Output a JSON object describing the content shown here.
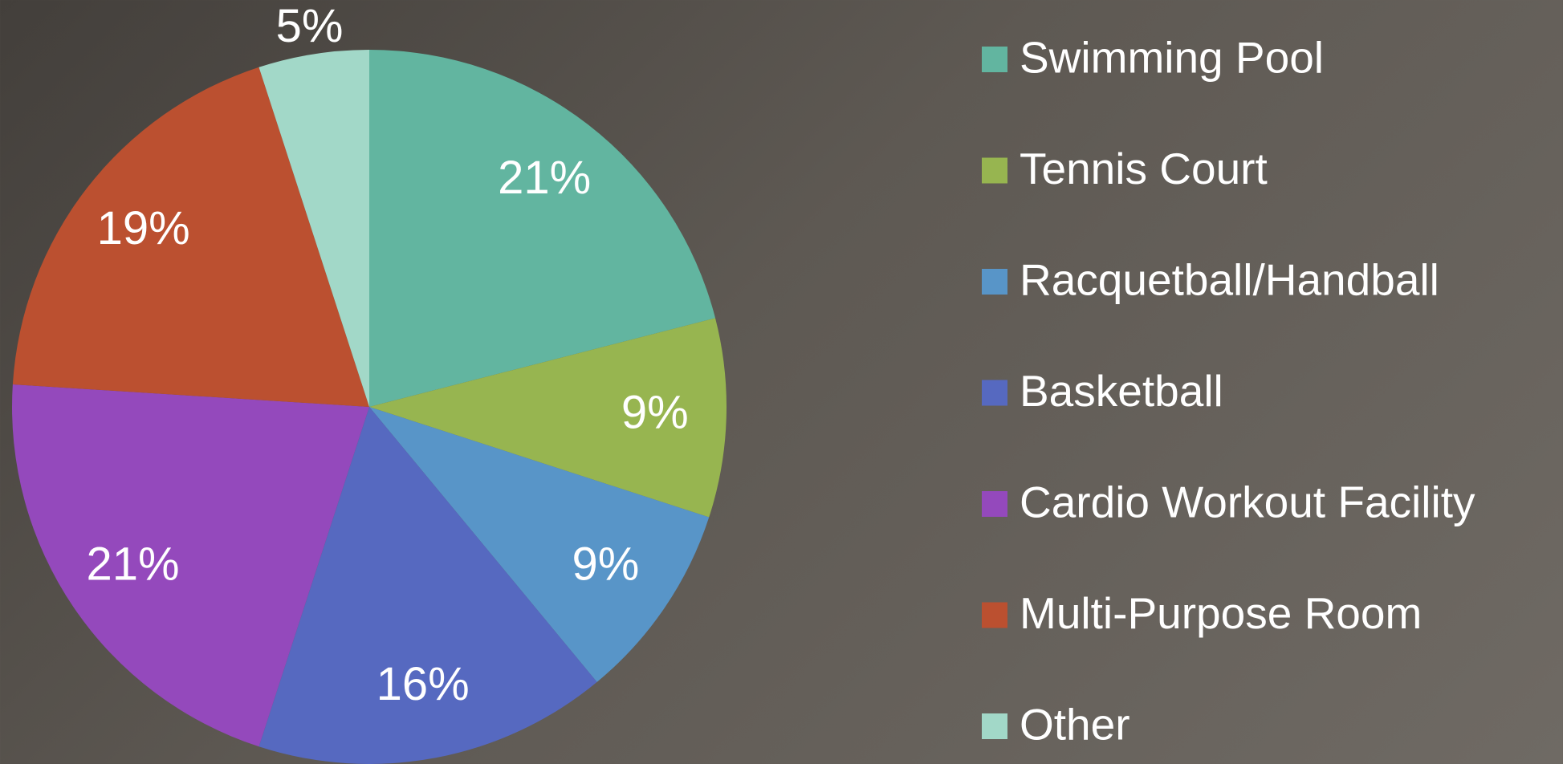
{
  "chart_data": {
    "type": "pie",
    "categories": [
      "Swimming Pool",
      "Tennis Court",
      "Racquetball/Handball",
      "Basketball",
      "Cardio Workout Facility",
      "Multi-Purpose Room",
      "Other"
    ],
    "values": [
      21,
      9,
      9,
      16,
      21,
      19,
      5
    ],
    "value_labels": [
      "21%",
      "9%",
      "9%",
      "16%",
      "21%",
      "19%",
      "5%"
    ],
    "colors": [
      "#62b5a0",
      "#97b550",
      "#5895c8",
      "#5669c0",
      "#9449bc",
      "#bb5030",
      "#a2d8c8"
    ],
    "legend": "right"
  }
}
